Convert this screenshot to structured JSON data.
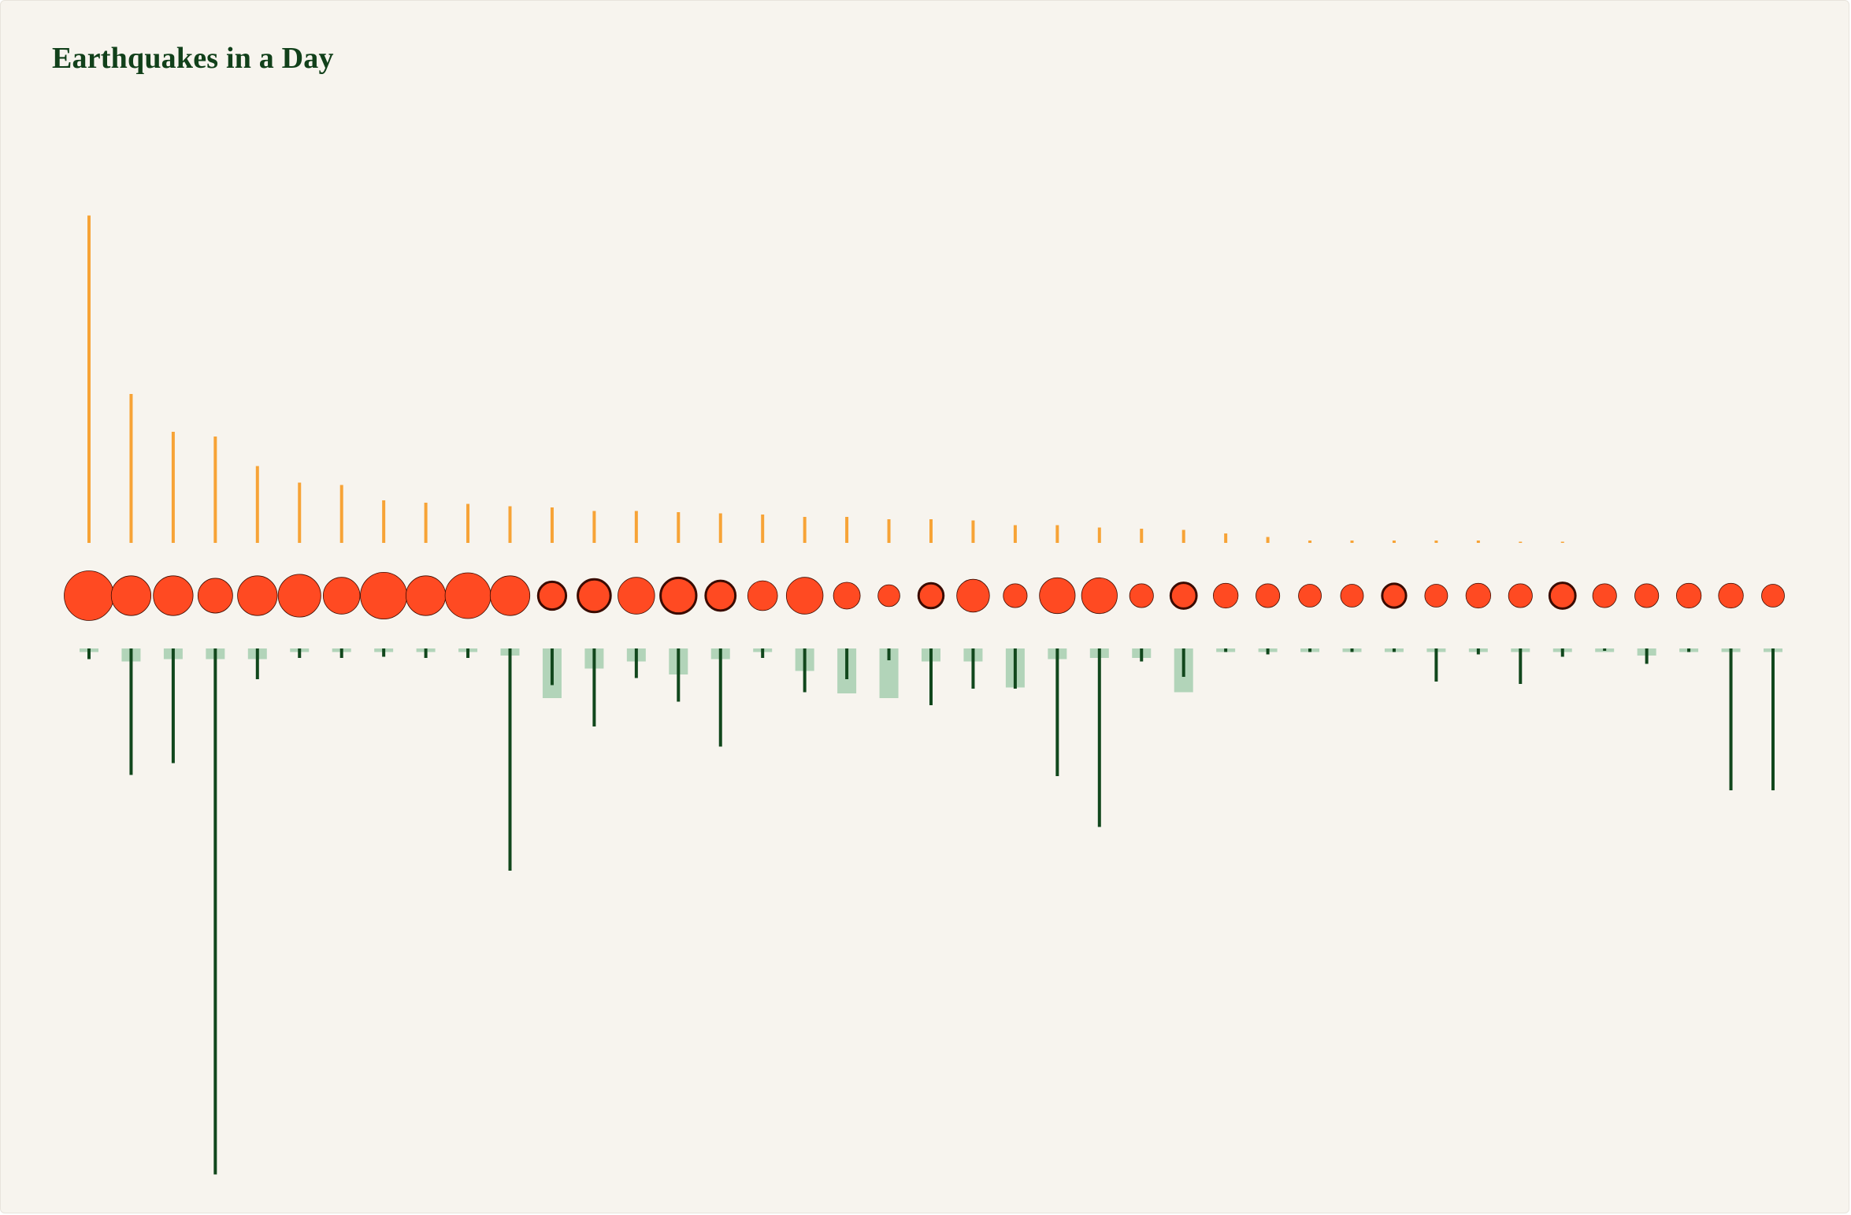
{
  "title": "Earthquakes in a Day",
  "colors": {
    "background": "#f7f4ee",
    "title": "#11401a",
    "top_stem": "#f7a336",
    "circle_fill": "#ff4a22",
    "circle_stroke": "#3a0b00",
    "bottom_stem": "#11471c",
    "bottom_bar": "#b2d4b9"
  },
  "chart_data": {
    "type": "scatter",
    "title": "Earthquakes in a Day",
    "n": 41,
    "top_values": [
      277,
      126,
      94,
      90,
      65,
      51,
      49,
      36,
      34,
      33,
      31,
      30,
      27,
      27,
      26,
      25,
      24,
      22,
      22,
      20,
      20,
      19,
      15,
      15,
      13,
      12,
      11,
      8,
      5,
      2,
      2,
      2,
      2,
      2,
      1,
      1,
      0,
      0,
      0,
      0,
      0
    ],
    "circle_sizes": [
      5.0,
      4.0,
      4.0,
      3.5,
      4.0,
      4.3,
      3.7,
      4.7,
      4.0,
      4.6,
      4.0,
      2.8,
      3.3,
      3.7,
      3.6,
      3.0,
      3.0,
      3.7,
      2.7,
      2.2,
      2.5,
      3.3,
      2.4,
      3.6,
      3.6,
      2.4,
      2.6,
      2.5,
      2.4,
      2.3,
      2.3,
      2.4,
      2.3,
      2.5,
      2.4,
      2.6,
      2.4,
      2.4,
      2.5,
      2.5,
      2.3
    ],
    "circle_dark_outline": [
      false,
      false,
      false,
      false,
      false,
      false,
      false,
      false,
      false,
      false,
      false,
      true,
      true,
      false,
      true,
      true,
      false,
      false,
      false,
      false,
      true,
      false,
      false,
      false,
      false,
      false,
      true,
      false,
      false,
      false,
      false,
      true,
      false,
      false,
      false,
      true,
      false,
      false,
      false,
      false,
      false
    ],
    "bottom_stem_values": [
      9,
      107,
      97,
      445,
      26,
      8,
      8,
      7,
      8,
      8,
      188,
      31,
      66,
      25,
      45,
      83,
      8,
      37,
      26,
      10,
      48,
      34,
      34,
      108,
      151,
      11,
      24,
      3,
      5,
      3,
      3,
      3,
      28,
      5,
      30,
      7,
      2,
      13,
      3,
      120,
      120
    ],
    "bottom_bar_values": [
      3,
      11,
      9,
      9,
      9,
      3,
      3,
      3,
      3,
      3,
      6,
      42,
      17,
      11,
      22,
      9,
      3,
      19,
      38,
      42,
      11,
      11,
      33,
      9,
      8,
      8,
      37,
      3,
      3,
      3,
      3,
      3,
      3,
      3,
      3,
      3,
      3,
      6,
      3,
      3,
      3
    ]
  }
}
